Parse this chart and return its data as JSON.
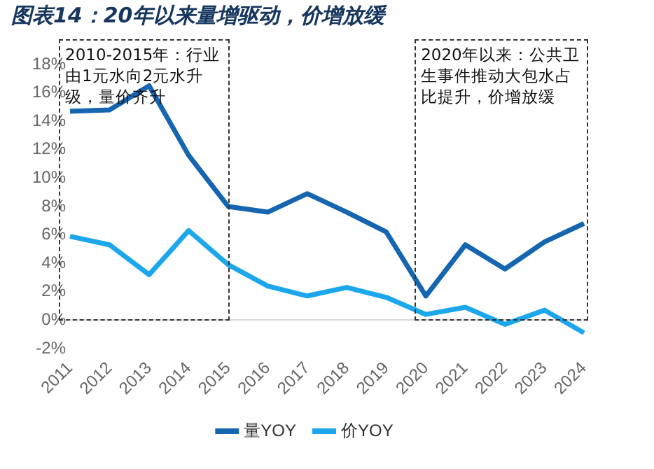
{
  "chart_data": {
    "type": "line",
    "title": "图表14：20年以来量增驱动，价增放缓",
    "categories": [
      "2011",
      "2012",
      "2013",
      "2014",
      "2015",
      "2016",
      "2017",
      "2018",
      "2019",
      "2020",
      "2021",
      "2022",
      "2023",
      "2024"
    ],
    "series": [
      {
        "name": "量YOY",
        "color": "#1565b0",
        "values": [
          14.7,
          14.8,
          16.5,
          11.6,
          8.0,
          7.6,
          8.9,
          7.6,
          6.2,
          1.7,
          5.3,
          3.6,
          5.5,
          6.8
        ]
      },
      {
        "name": "价YOY",
        "color": "#1ca7ec",
        "values": [
          5.9,
          5.3,
          3.2,
          6.3,
          3.9,
          2.4,
          1.7,
          2.3,
          1.6,
          0.4,
          0.9,
          -0.3,
          0.7,
          -0.9
        ]
      }
    ],
    "ylim": [
      -2,
      18
    ],
    "yticks": [
      {
        "value": -2,
        "label": "-2%"
      },
      {
        "value": 0,
        "label": "0%"
      },
      {
        "value": 2,
        "label": "2%"
      },
      {
        "value": 4,
        "label": "4%"
      },
      {
        "value": 6,
        "label": "6%"
      },
      {
        "value": 8,
        "label": "8%"
      },
      {
        "value": 10,
        "label": "10%"
      },
      {
        "value": 12,
        "label": "12%"
      },
      {
        "value": 14,
        "label": "14%"
      },
      {
        "value": 16,
        "label": "16%"
      },
      {
        "value": 18,
        "label": "18%"
      }
    ],
    "annotations": [
      "2010-2015年：行业由1元水向2元水升级，量价齐升",
      "2020年以来：公共卫生事件推动大包水占比提升，价增放缓"
    ],
    "grid": false,
    "legend": "bottom",
    "marker": "none",
    "line_style": "solid"
  }
}
